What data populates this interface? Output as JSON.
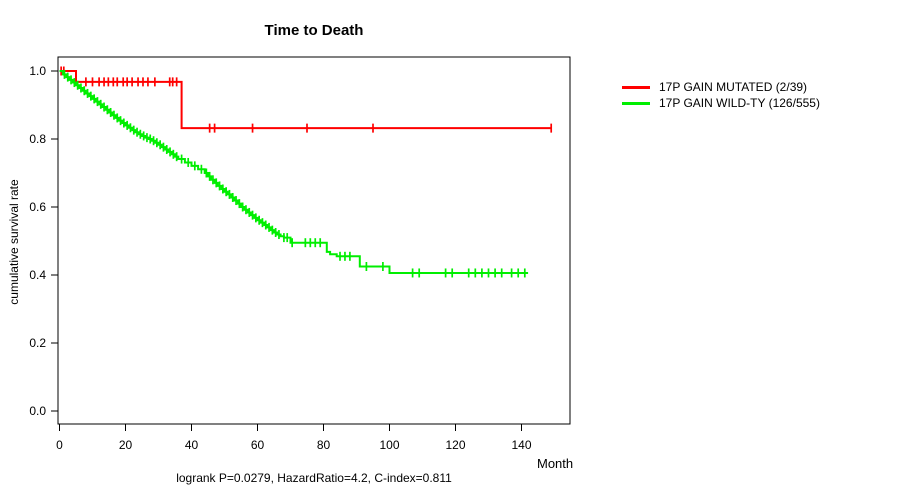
{
  "title": "Time to Death",
  "caption": "logrank P=0.0279, HazardRatio=4.2, C-index=0.811",
  "axes": {
    "x_label": "Month",
    "y_label": "cumulative survival rate"
  },
  "legend": {
    "items": [
      {
        "label": "17P GAIN MUTATED (2/39)",
        "color": "#ff0000"
      },
      {
        "label": "17P GAIN WILD-TY (126/555)",
        "color": "#00ee00"
      }
    ]
  },
  "chart_data": {
    "type": "line",
    "subtype": "kaplan-meier-step",
    "title": "Time to Death",
    "xlabel": "Month",
    "ylabel": "cumulative survival rate",
    "xlim": [
      0,
      154
    ],
    "ylim": [
      0.0,
      1.0
    ],
    "x_ticks": [
      0,
      20,
      40,
      60,
      80,
      100,
      120,
      140
    ],
    "y_ticks": [
      "0.0",
      "0.2",
      "0.4",
      "0.6",
      "0.8",
      "1.0"
    ],
    "grid": false,
    "legend_position": "right-outside",
    "series": [
      {
        "name": "17P GAIN MUTATED (2/39)",
        "color": "#ff0000",
        "points": [
          [
            0,
            1.0
          ],
          [
            5,
            0.968
          ],
          [
            37,
            0.832
          ],
          [
            149,
            0.832
          ]
        ],
        "censor_months": [
          0.5,
          1.3,
          8,
          10,
          12,
          13.5,
          14.8,
          16.3,
          17.5,
          19.3,
          20.5,
          22,
          23.8,
          25.3,
          26.8,
          28.9,
          33.4,
          34.3,
          35.5,
          45.5,
          47,
          58.5,
          75,
          95,
          149
        ]
      },
      {
        "name": "17P GAIN WILD-TY (126/555)",
        "color": "#00ee00",
        "points": [
          [
            0,
            1.0
          ],
          [
            1,
            0.99
          ],
          [
            2,
            0.982
          ],
          [
            3,
            0.974
          ],
          [
            4,
            0.966
          ],
          [
            5,
            0.958
          ],
          [
            6,
            0.95
          ],
          [
            7,
            0.942
          ],
          [
            8,
            0.934
          ],
          [
            9,
            0.926
          ],
          [
            10,
            0.918
          ],
          [
            11,
            0.91
          ],
          [
            12,
            0.902
          ],
          [
            13,
            0.894
          ],
          [
            14,
            0.886
          ],
          [
            15,
            0.878
          ],
          [
            16,
            0.87
          ],
          [
            17,
            0.862
          ],
          [
            18,
            0.854
          ],
          [
            19,
            0.847
          ],
          [
            20,
            0.84
          ],
          [
            21,
            0.833
          ],
          [
            22,
            0.826
          ],
          [
            23,
            0.82
          ],
          [
            24,
            0.814
          ],
          [
            25,
            0.809
          ],
          [
            26,
            0.804
          ],
          [
            27,
            0.8
          ],
          [
            28,
            0.795
          ],
          [
            29,
            0.789
          ],
          [
            30,
            0.783
          ],
          [
            31,
            0.776
          ],
          [
            32,
            0.769
          ],
          [
            33,
            0.762
          ],
          [
            34,
            0.755
          ],
          [
            35,
            0.748
          ],
          [
            36,
            0.741
          ],
          [
            38,
            0.731
          ],
          [
            40,
            0.721
          ],
          [
            42,
            0.711
          ],
          [
            44,
            0.7
          ],
          [
            45,
            0.69
          ],
          [
            46,
            0.68
          ],
          [
            47,
            0.671
          ],
          [
            48,
            0.662
          ],
          [
            49,
            0.653
          ],
          [
            50,
            0.645
          ],
          [
            51,
            0.637
          ],
          [
            52,
            0.628
          ],
          [
            53,
            0.619
          ],
          [
            54,
            0.61
          ],
          [
            55,
            0.6
          ],
          [
            56,
            0.592
          ],
          [
            57,
            0.584
          ],
          [
            58,
            0.576
          ],
          [
            59,
            0.568
          ],
          [
            60,
            0.561
          ],
          [
            61,
            0.554
          ],
          [
            62,
            0.547
          ],
          [
            63,
            0.54
          ],
          [
            64,
            0.532
          ],
          [
            65,
            0.525
          ],
          [
            66,
            0.519
          ],
          [
            67,
            0.514
          ],
          [
            68,
            0.51
          ],
          [
            70,
            0.495
          ],
          [
            81,
            0.468
          ],
          [
            82,
            0.461
          ],
          [
            84,
            0.455
          ],
          [
            91,
            0.425
          ],
          [
            100,
            0.406
          ],
          [
            142,
            0.406
          ]
        ],
        "censor_months": [
          1.5,
          2.5,
          3.5,
          4.5,
          5.5,
          6.5,
          7.5,
          8.5,
          9.5,
          10.5,
          11.5,
          12.5,
          13.5,
          14.5,
          15.5,
          16.5,
          17.5,
          18.5,
          19.5,
          20.5,
          21.5,
          22.5,
          23.5,
          24.5,
          25.5,
          26.5,
          27.5,
          28.5,
          29.5,
          30.5,
          31.5,
          32.5,
          33.5,
          34.5,
          35.5,
          37,
          39,
          41,
          43,
          44.5,
          45.5,
          46.5,
          47.5,
          48.5,
          49.5,
          50.5,
          51.5,
          52.5,
          53.5,
          54.5,
          55.5,
          56.5,
          57.5,
          58.5,
          59.5,
          60.5,
          61.5,
          62.5,
          63.5,
          64.5,
          65.5,
          66.5,
          68,
          69,
          70.5,
          74.5,
          76,
          77.5,
          79,
          85,
          86.5,
          88,
          93,
          98,
          107,
          109,
          117,
          119,
          124,
          126,
          128,
          130,
          132,
          134,
          137,
          139,
          141
        ]
      }
    ],
    "annotations": [
      "logrank P=0.0279, HazardRatio=4.2, C-index=0.811"
    ]
  }
}
